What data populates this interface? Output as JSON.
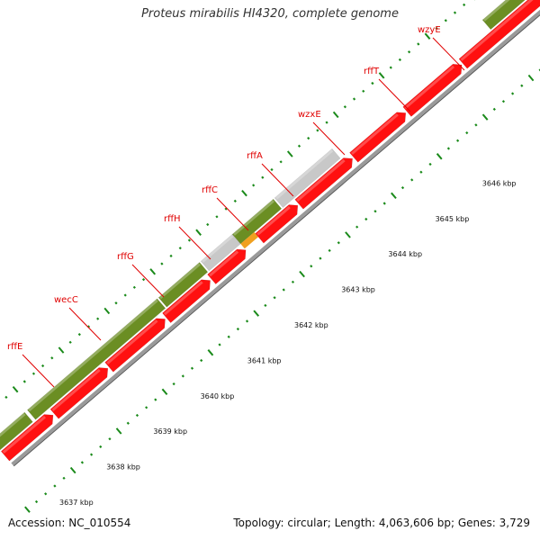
{
  "title": "Proteus mirabilis HI4320, complete genome",
  "footer": {
    "accession": "Accession: NC_010554",
    "summary": "Topology: circular; Length: 4,063,606 bp; Genes: 3,729"
  },
  "colors": {
    "gene_label": "#e00000",
    "forward_cds": "#6b8e23",
    "reverse_cds": "#ff1010",
    "gray_feature": "#c8c8c8",
    "orange_feature": "#f0a020",
    "tick": "#1a8a1a",
    "backbone": "#9a9a9a"
  },
  "genes": [
    "rffE",
    "wecC",
    "rffG",
    "rffH",
    "rffC",
    "rffA",
    "wzxE",
    "rffT",
    "wzyE"
  ],
  "bp_labels": [
    "3637 kbp",
    "3638 kbp",
    "3639 kbp",
    "3640 kbp",
    "3641 kbp",
    "3642 kbp",
    "3643 kbp",
    "3644 kbp",
    "3645 kbp",
    "3646 kbp"
  ]
}
